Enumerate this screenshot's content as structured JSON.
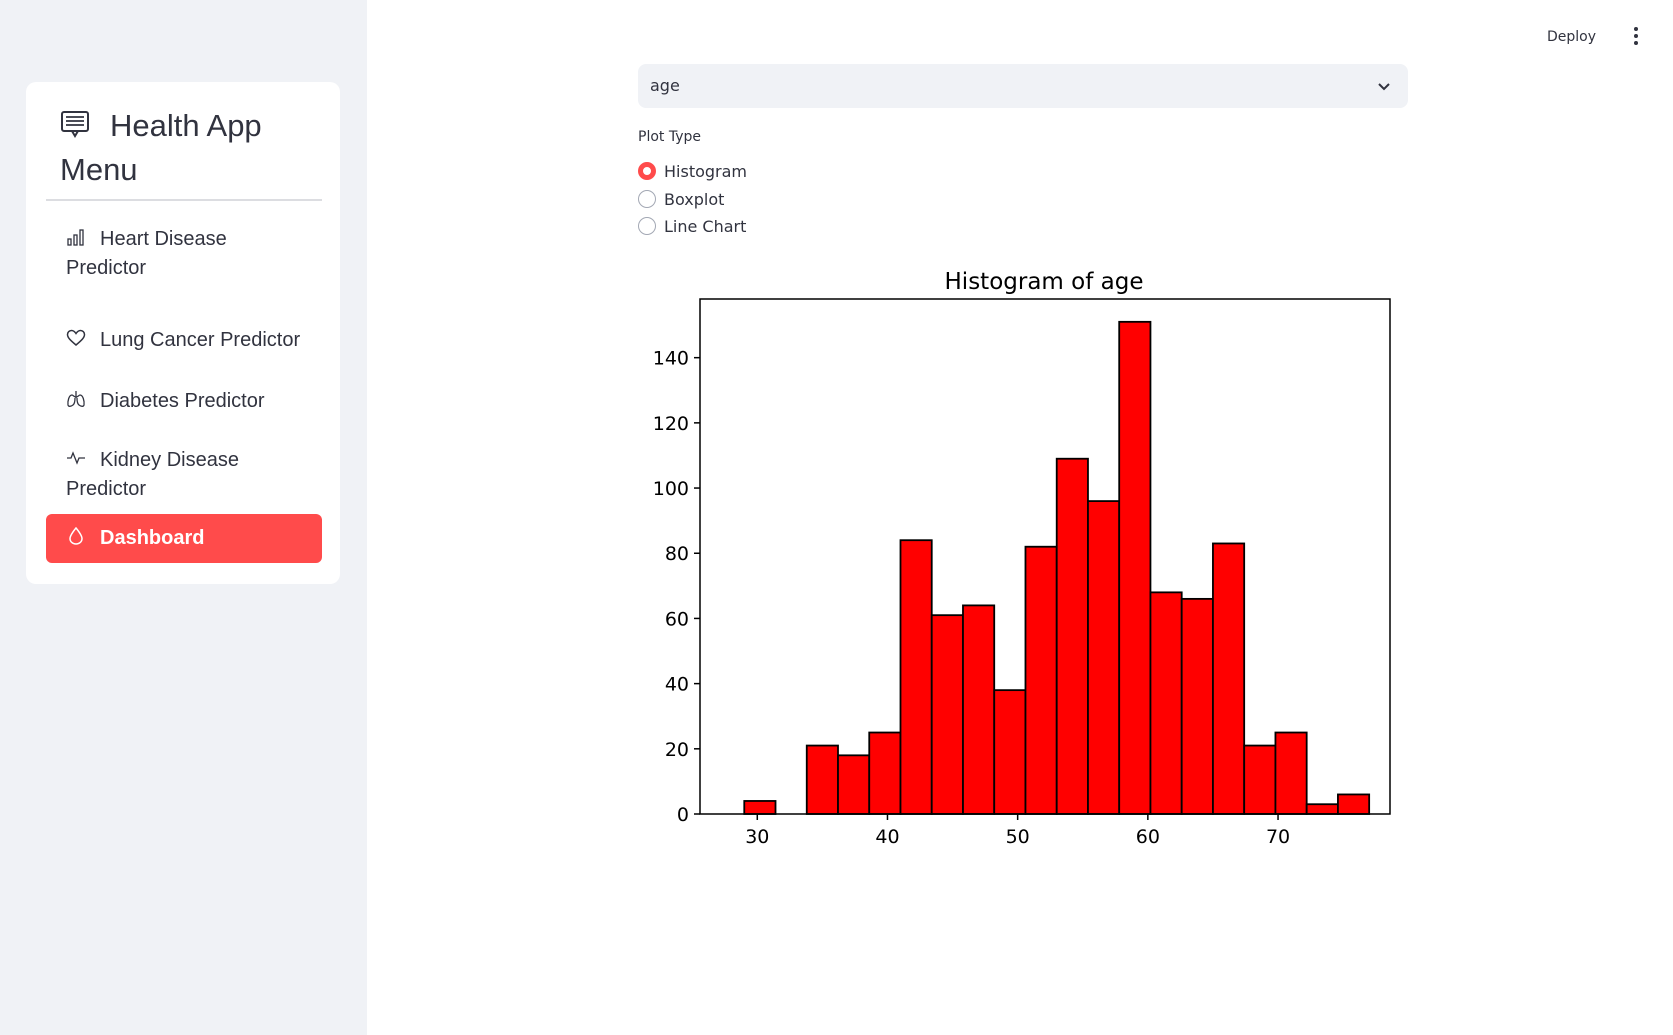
{
  "sidebar": {
    "title": "Health App Menu",
    "items": [
      {
        "label": "Heart Disease Predictor",
        "icon": "bar-chart-icon"
      },
      {
        "label": "Lung Cancer Predictor",
        "icon": "heart-icon"
      },
      {
        "label": "Diabetes Predictor",
        "icon": "lungs-icon"
      },
      {
        "label": "Kidney Disease Predictor",
        "icon": "activity-icon"
      },
      {
        "label": "Dashboard",
        "icon": "droplet-icon",
        "active": true
      }
    ]
  },
  "header": {
    "deploy_label": "Deploy"
  },
  "main": {
    "select": {
      "value": "age"
    },
    "plot_type": {
      "label": "Plot Type",
      "options": [
        "Histogram",
        "Boxplot",
        "Line Chart"
      ],
      "selected": "Histogram"
    }
  },
  "colors": {
    "accent": "#ff4b4b",
    "sidebar_bg": "#f0f2f6",
    "bar_fill": "#ff0000"
  },
  "chart_data": {
    "type": "bar",
    "title": "Histogram of age",
    "xlabel": "",
    "ylabel": "",
    "bin_edges": [
      29,
      31.4,
      33.8,
      36.2,
      38.6,
      41,
      43.4,
      45.8,
      48.2,
      50.6,
      53,
      55.4,
      57.8,
      60.2,
      62.6,
      65,
      67.4,
      69.8,
      72.2,
      74.6,
      77
    ],
    "values": [
      4,
      0,
      21,
      18,
      25,
      84,
      61,
      64,
      38,
      82,
      109,
      96,
      151,
      68,
      66,
      83,
      21,
      25,
      3,
      6
    ],
    "xlim": [
      25.6,
      78.6
    ],
    "ylim": [
      0,
      158
    ],
    "xticks": [
      30,
      40,
      50,
      60,
      70
    ],
    "yticks": [
      0,
      20,
      40,
      60,
      80,
      100,
      120,
      140
    ],
    "grid": false
  }
}
